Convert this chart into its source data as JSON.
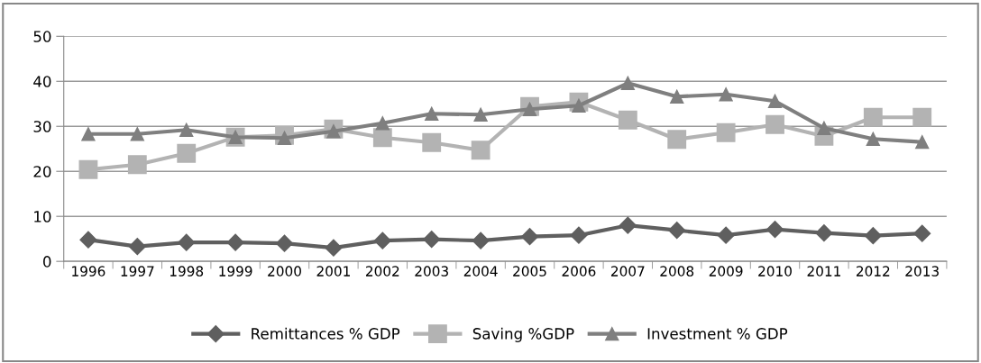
{
  "chart_data": {
    "type": "line",
    "categories": [
      "1996",
      "1997",
      "1998",
      "1999",
      "2000",
      "2001",
      "2002",
      "2003",
      "2004",
      "2005",
      "2006",
      "2007",
      "2008",
      "2009",
      "2010",
      "2011",
      "2012",
      "2013"
    ],
    "series": [
      {
        "name": "Remittances % GDP",
        "color": "#5f5f5f",
        "marker": "diamond",
        "values": [
          4.8,
          3.3,
          4.2,
          4.2,
          4.0,
          3.0,
          4.6,
          4.9,
          4.6,
          5.5,
          5.8,
          8.0,
          6.9,
          5.8,
          7.1,
          6.3,
          5.7,
          6.2
        ]
      },
      {
        "name": "Saving %GDP",
        "color": "#b3b3b3",
        "marker": "square",
        "values": [
          20.4,
          21.5,
          24.0,
          27.6,
          28.0,
          29.4,
          27.5,
          26.4,
          24.7,
          34.4,
          35.4,
          31.4,
          27.1,
          28.6,
          30.4,
          27.8,
          32.0,
          32.0
        ]
      },
      {
        "name": "Investment % GDP",
        "color": "#7f7f7f",
        "marker": "triangle",
        "values": [
          28.3,
          28.3,
          29.2,
          27.6,
          27.4,
          28.9,
          30.7,
          32.8,
          32.6,
          33.8,
          34.6,
          39.6,
          36.6,
          37.1,
          35.6,
          29.6,
          27.2,
          26.5
        ]
      }
    ],
    "ylim": [
      0,
      50
    ],
    "yticks": [
      0,
      10,
      20,
      30,
      40,
      50
    ],
    "grid": "y",
    "legend": "bottom",
    "line_style": "solid"
  }
}
